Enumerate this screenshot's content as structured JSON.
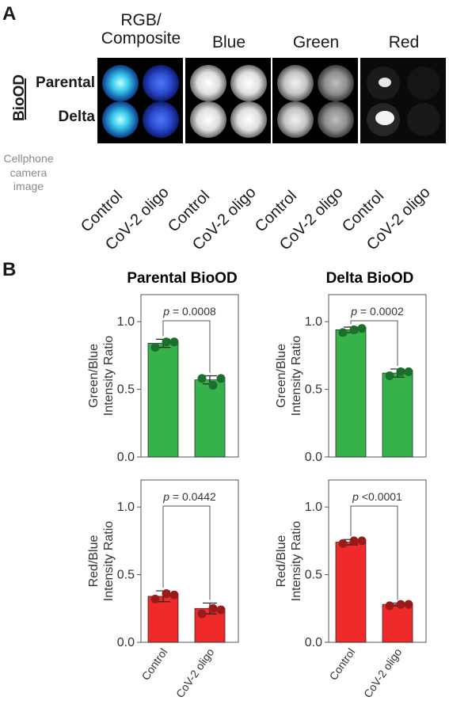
{
  "panels": {
    "a": "A",
    "b": "B"
  },
  "panel_a": {
    "channels": [
      {
        "title": "RGB/\nComposite",
        "color": "#222222"
      },
      {
        "title": "Blue",
        "color": "#2f95d3"
      },
      {
        "title": "Green",
        "color": "#23a348"
      },
      {
        "title": "Red",
        "color": "#e8302f"
      }
    ],
    "group_label": "BioOD",
    "row_labels": [
      "Parental",
      "Delta"
    ],
    "caption": "Cellphone\ncamera\nimage",
    "column_labels": [
      "Control",
      "CoV-2 oligo"
    ]
  },
  "panel_b": {
    "column_titles": [
      "Parental BioOD",
      "Delta BioOD"
    ],
    "ylabels": [
      "Green/Blue\nIntensity Ratio",
      "Red/Blue\nIntensity Ratio"
    ],
    "y_ticks": [
      "0.0",
      "0.5",
      "1.0"
    ],
    "categories": [
      "Control",
      "CoV-2 oligo"
    ]
  },
  "chart_data": [
    {
      "type": "bar",
      "title": "Parental BioOD",
      "ylabel": "Green/Blue Intensity Ratio",
      "categories": [
        "Control",
        "CoV-2 oligo"
      ],
      "ylim": [
        0,
        1.2
      ],
      "values": [
        0.84,
        0.57
      ],
      "errors": [
        0.03,
        0.03
      ],
      "points": [
        [
          0.81,
          0.85,
          0.85
        ],
        [
          0.58,
          0.53,
          0.58
        ]
      ],
      "p_label": "p = 0.0008",
      "bar_color": "#37b14a",
      "point_color": "#1c6e2c"
    },
    {
      "type": "bar",
      "title": "Delta BioOD",
      "ylabel": "Green/Blue Intensity Ratio",
      "categories": [
        "Control",
        "CoV-2 oligo"
      ],
      "ylim": [
        0,
        1.2
      ],
      "values": [
        0.94,
        0.62
      ],
      "errors": [
        0.02,
        0.03
      ],
      "points": [
        [
          0.92,
          0.94,
          0.95
        ],
        [
          0.6,
          0.63,
          0.63
        ]
      ],
      "p_label": "p = 0.0002",
      "bar_color": "#37b14a",
      "point_color": "#1c6e2c"
    },
    {
      "type": "bar",
      "title": "Parental BioOD",
      "ylabel": "Red/Blue Intensity Ratio",
      "categories": [
        "Control",
        "CoV-2 oligo"
      ],
      "ylim": [
        0,
        1.2
      ],
      "values": [
        0.34,
        0.25
      ],
      "errors": [
        0.04,
        0.04
      ],
      "points": [
        [
          0.32,
          0.36,
          0.35
        ],
        [
          0.21,
          0.25,
          0.24
        ]
      ],
      "p_label": "p = 0.0442",
      "bar_color": "#ee2a2a",
      "point_color": "#9a1a1a"
    },
    {
      "type": "bar",
      "title": "Delta BioOD",
      "ylabel": "Red/Blue Intensity Ratio",
      "categories": [
        "Control",
        "CoV-2 oligo"
      ],
      "ylim": [
        0,
        1.2
      ],
      "values": [
        0.74,
        0.28
      ],
      "errors": [
        0.02,
        0.01
      ],
      "points": [
        [
          0.73,
          0.75,
          0.75
        ],
        [
          0.27,
          0.28,
          0.28
        ]
      ],
      "p_label": "p <0.0001",
      "bar_color": "#ee2a2a",
      "point_color": "#9a1a1a"
    }
  ]
}
